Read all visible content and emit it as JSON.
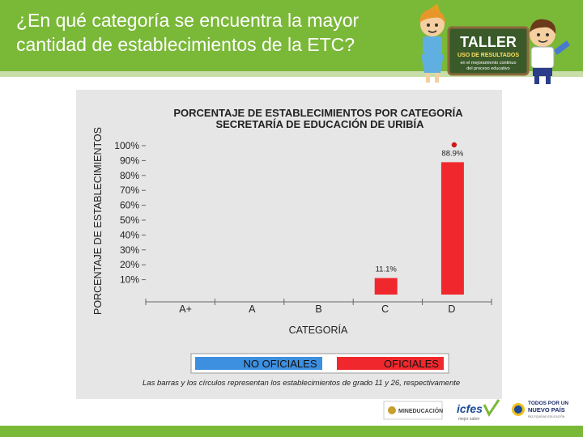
{
  "slide": {
    "title": "¿En qué categoría se encuentra la mayor cantidad de establecimientos de la ETC?"
  },
  "branding": {
    "taller_title": "TALLER",
    "taller_subtitle": "USO DE RESULTADOS",
    "taller_line1": "en el mejoramiento continuo",
    "taller_line2": "del proceso educativo",
    "mineducacion": "MINEDUCACIÓN",
    "icfes": "icfes",
    "icfes_tag": "mejor saber",
    "pais_line1": "TODOS POR UN",
    "pais_line2": "NUEVO PAÍS",
    "pais_line3": "PAZ  EQUIDAD  EDUCACIÓN"
  },
  "colors": {
    "header_green": "#7ab838",
    "no_oficiales": "#3d8fe0",
    "oficiales": "#f0282d",
    "circle": "#cc1a1a"
  },
  "chart_data": {
    "type": "bar",
    "title": "PORCENTAJE DE ESTABLECIMIENTOS POR CATEGORÍA",
    "subtitle": "SECRETARÍA DE EDUCACIÓN DE URIBÍA",
    "xlabel": "CATEGORÍA",
    "ylabel": "PORCENTAJE DE ESTABLECIMIENTOS",
    "categories": [
      "A+",
      "A",
      "B",
      "C",
      "D"
    ],
    "yticks": [
      "100%",
      "90%",
      "80%",
      "70%",
      "60%",
      "50%",
      "40%",
      "30%",
      "20%",
      "10%"
    ],
    "ylim": [
      0,
      100
    ],
    "series": [
      {
        "name": "NO OFICIALES",
        "values": [
          0,
          0,
          0,
          0,
          0
        ]
      },
      {
        "name": "OFICIALES",
        "values": [
          0,
          0,
          0,
          11.1,
          88.9
        ],
        "labels": [
          "",
          "",
          "",
          "11.1%",
          "88.9%"
        ]
      }
    ],
    "circles": [
      {
        "category": "D",
        "value": 100
      }
    ],
    "legend_position": "bottom",
    "note": "Las barras y los círculos representan los establecimientos de grado 11 y 26, respectivamente"
  }
}
